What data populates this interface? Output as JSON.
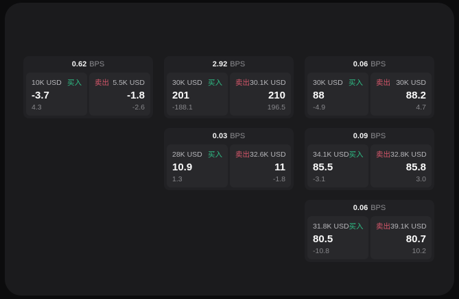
{
  "labels": {
    "bps_unit": "BPS",
    "buy": "买入",
    "sell": "卖出"
  },
  "colors": {
    "buy": "#2ebd85",
    "sell": "#d4566a"
  },
  "cards": [
    {
      "bps": "0.62",
      "buy": {
        "amount": "10K USD",
        "value": "-3.7",
        "sub": "4.3"
      },
      "sell": {
        "amount": "5.5K USD",
        "value": "-1.8",
        "sub": "-2.6"
      }
    },
    {
      "bps": "2.92",
      "buy": {
        "amount": "30K USD",
        "value": "201",
        "sub": "-188.1"
      },
      "sell": {
        "amount": "30.1K USD",
        "value": "210",
        "sub": "196.5"
      }
    },
    {
      "bps": "0.06",
      "buy": {
        "amount": "30K USD",
        "value": "88",
        "sub": "-4.9"
      },
      "sell": {
        "amount": "30K USD",
        "value": "88.2",
        "sub": "4.7"
      }
    },
    {
      "bps": "0.03",
      "buy": {
        "amount": "28K USD",
        "value": "10.9",
        "sub": "1.3"
      },
      "sell": {
        "amount": "32.6K USD",
        "value": "11",
        "sub": "-1.8"
      }
    },
    {
      "bps": "0.09",
      "buy": {
        "amount": "34.1K USD",
        "value": "85.5",
        "sub": "-3.1"
      },
      "sell": {
        "amount": "32.8K USD",
        "value": "85.8",
        "sub": "3.0"
      }
    },
    {
      "bps": "0.06",
      "buy": {
        "amount": "31.8K USD",
        "value": "80.5",
        "sub": "-10.8"
      },
      "sell": {
        "amount": "39.1K USD",
        "value": "80.7",
        "sub": "10.2"
      }
    }
  ]
}
